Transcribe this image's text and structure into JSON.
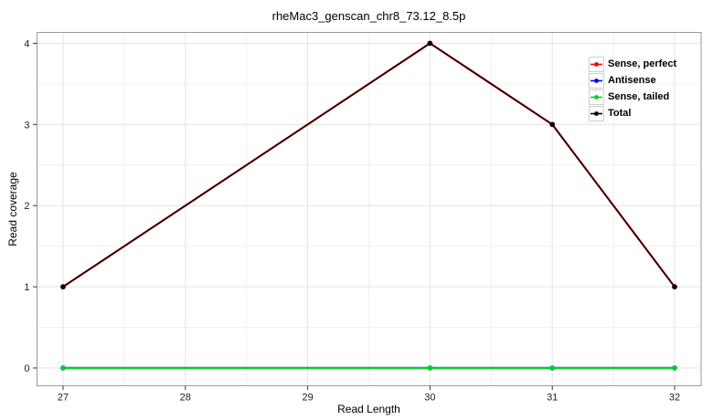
{
  "chart_data": {
    "type": "line",
    "title": "rheMac3_genscan_chr8_73.12_8.5p",
    "xlabel": "Read Length",
    "ylabel": "Read coverage",
    "x": [
      27,
      30,
      31,
      32
    ],
    "x_ticks": [
      27,
      28,
      29,
      30,
      31,
      32
    ],
    "y_ticks": [
      0,
      1,
      2,
      3,
      4
    ],
    "xlim": [
      26.8,
      32.2
    ],
    "ylim": [
      -0.2,
      4.1
    ],
    "grid": "major and minor gridlines on, white panel",
    "legend_position": "top-right inside panel",
    "series": [
      {
        "name": "Sense, perfect",
        "color": "#ff0000",
        "values": [
          1,
          4,
          3,
          1
        ]
      },
      {
        "name": "Antisense",
        "color": "#0000ff",
        "values": [
          0,
          0,
          0,
          0
        ]
      },
      {
        "name": "Sense, tailed",
        "color": "#00d021",
        "values": [
          0,
          0,
          0,
          0
        ]
      },
      {
        "name": "Total",
        "color": "#000000",
        "values": [
          1,
          4,
          3,
          1
        ]
      }
    ],
    "colors": {
      "grid_major": "#e3e3e3",
      "grid_minor": "#f1f1f1",
      "panel_border": "#9a9a9a",
      "tick_mark": "#333333",
      "text": "#1d1d1d",
      "background": "#ffffff"
    }
  }
}
